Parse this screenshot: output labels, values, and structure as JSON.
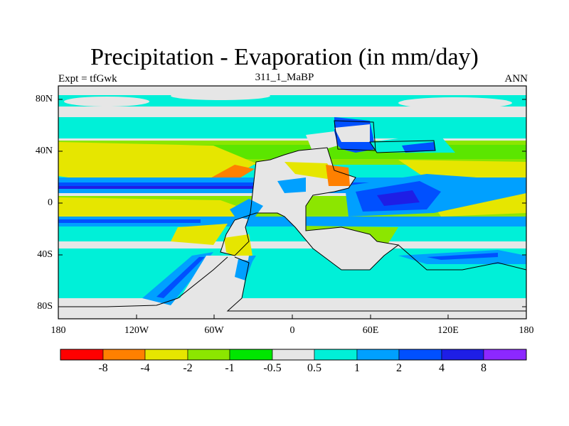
{
  "title": "Precipitation - Evaporation (in mm/day)",
  "left_label": "Expt = tfGwk",
  "center_label": "311_1_MaBP",
  "right_label": "ANN",
  "lat_labels": [
    "80N",
    "40N",
    "0",
    "40S",
    "80S"
  ],
  "lon_labels": [
    "180",
    "120W",
    "60W",
    "0",
    "60E",
    "120E",
    "180"
  ],
  "colorbar": {
    "colors": [
      "#ff0000",
      "#ff8000",
      "#e6e600",
      "#8ce600",
      "#00e600",
      "#e6e6e6",
      "#00f0d8",
      "#00a0ff",
      "#0050ff",
      "#1e1ee6",
      "#8c28ff"
    ],
    "labels": [
      "-8",
      "-4",
      "-2",
      "-1",
      "-0.5",
      "0.5",
      "1",
      "2",
      "4",
      "8"
    ]
  },
  "chart_data": {
    "type": "map",
    "title": "Precipitation - Evaporation (in mm/day)",
    "subtitle": "311_1_MaBP",
    "variable_units": "mm/day",
    "season": "ANN",
    "experiment": "tfGwk",
    "lon_range": [
      -180,
      180
    ],
    "lat_range": [
      -90,
      90
    ],
    "contour_levels": [
      -8,
      -4,
      -2,
      -1,
      -0.5,
      0.5,
      1,
      2,
      4,
      8
    ]
  }
}
